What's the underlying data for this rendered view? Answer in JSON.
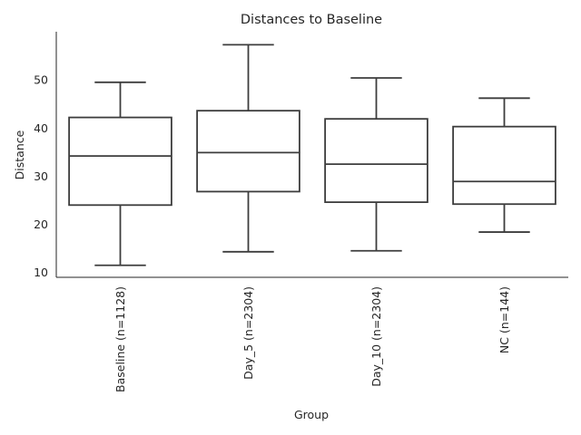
{
  "chart_data": {
    "type": "box",
    "title": "Distances to Baseline",
    "xlabel": "Group",
    "ylabel": "Distance",
    "ylim": [
      9,
      60
    ],
    "yticks": [
      10,
      20,
      30,
      40,
      50
    ],
    "groups": [
      {
        "label": "Baseline (n=1128)",
        "whisker_low": 11.5,
        "q1": 24.0,
        "median": 34.2,
        "q3": 42.2,
        "whisker_high": 49.5
      },
      {
        "label": "Day_5 (n=2304)",
        "whisker_low": 14.3,
        "q1": 26.8,
        "median": 34.9,
        "q3": 43.6,
        "whisker_high": 57.3
      },
      {
        "label": "Day_10 (n=2304)",
        "whisker_low": 14.5,
        "q1": 24.6,
        "median": 32.5,
        "q3": 41.9,
        "whisker_high": 50.4
      },
      {
        "label": "NC (n=144)",
        "whisker_low": 18.4,
        "q1": 24.2,
        "median": 28.9,
        "q3": 40.3,
        "whisker_high": 46.2
      }
    ],
    "grid": false,
    "box_color": "#ffffff",
    "line_color": "#3d3d3d"
  }
}
